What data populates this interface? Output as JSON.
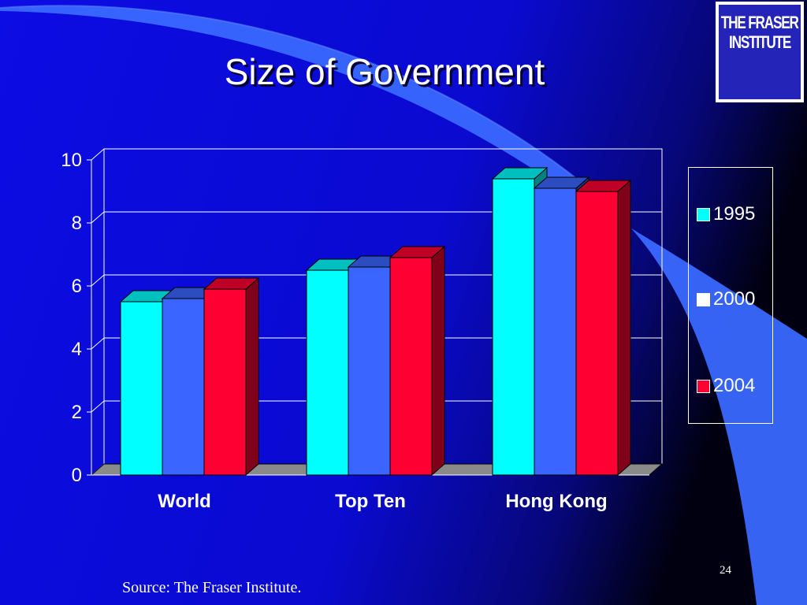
{
  "slide": {
    "title": "Size of Government",
    "source": "Source: The Fraser Institute.",
    "page_number": "24",
    "logo": {
      "line1": "THE FRASER",
      "line2": "INSTITUTE"
    }
  },
  "colors": {
    "background": "#0a0ad8",
    "swoosh": "#3a68ff",
    "series_1995": "#00ffff",
    "series_2000": "#3a66ff",
    "series_2004": "#ff0033"
  },
  "chart_data": {
    "type": "bar",
    "title": "",
    "xlabel": "",
    "ylabel": "",
    "categories": [
      "World",
      "Top Ten",
      "Hong Kong"
    ],
    "series": [
      {
        "name": "1995",
        "color": "#00ffff",
        "values": [
          5.5,
          6.5,
          9.4
        ]
      },
      {
        "name": "2000",
        "color": "#3a66ff",
        "values": [
          5.6,
          6.6,
          9.1
        ]
      },
      {
        "name": "2004",
        "color": "#ff0033",
        "values": [
          5.9,
          6.9,
          9.0
        ]
      }
    ],
    "ylim": [
      0,
      10
    ],
    "yticks": [
      0,
      2,
      4,
      6,
      8,
      10
    ],
    "grid": true,
    "legend_position": "right",
    "three_d": true
  }
}
